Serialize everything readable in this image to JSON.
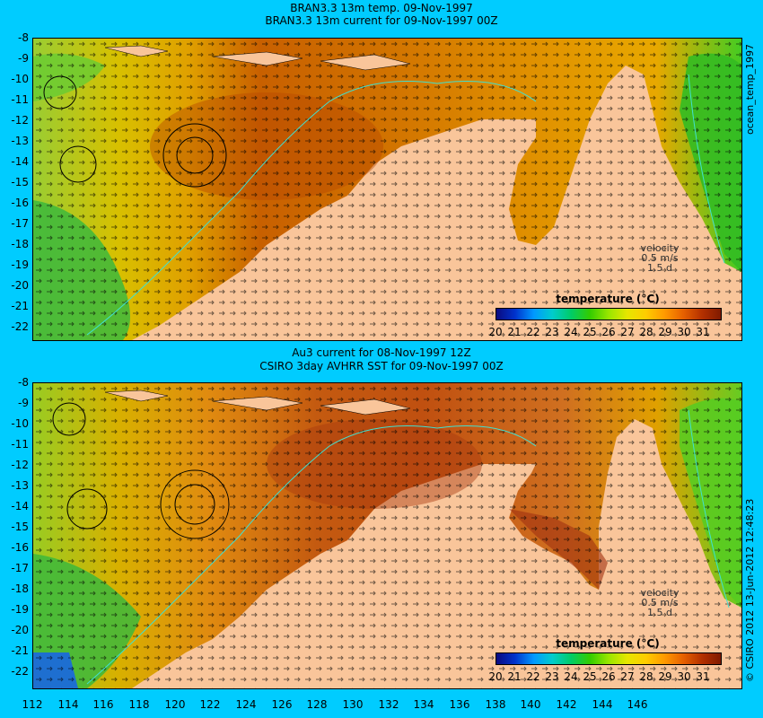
{
  "panels": [
    {
      "title_line1": "BRAN3.3 13m temp. 09-Nov-1997",
      "title_line2": "BRAN3.3 13m current for 09-Nov-1997 00Z",
      "velocity": [
        "velocity",
        "0.5 m/s",
        "1.5 d"
      ],
      "colorbar_title": "temperature (°C)"
    },
    {
      "title_line1": "Au3 current for 08-Nov-1997 12Z",
      "title_line2": "CSIRO 3day AVHRR SST for 09-Nov-1997 00Z",
      "velocity": [
        "velocity",
        "0.5 m/s",
        "1.5 d"
      ],
      "colorbar_title": "temperature (°C)"
    }
  ],
  "y_ticks": [
    "-8",
    "-9",
    "-10",
    "-11",
    "-12",
    "-13",
    "-14",
    "-15",
    "-16",
    "-17",
    "-18",
    "-19",
    "-20",
    "-21",
    "-22"
  ],
  "x_ticks": [
    "112",
    "114",
    "116",
    "118",
    "120",
    "122",
    "124",
    "126",
    "128",
    "130",
    "132",
    "134",
    "136",
    "138",
    "140",
    "142",
    "144",
    "146"
  ],
  "colorbar_ticks": [
    "20",
    "21",
    "22",
    "23",
    "24",
    "25",
    "26",
    "27",
    "28",
    "29",
    "30",
    "31"
  ],
  "side_label_top": "ocean_temp_1997",
  "side_label_bottom": "© CSIRO 2012 13-Jun-2012 12:48:23",
  "colors": {
    "background": "#00ccff",
    "land": "#f9c59a",
    "shelf_contour": "#40e0d0"
  }
}
